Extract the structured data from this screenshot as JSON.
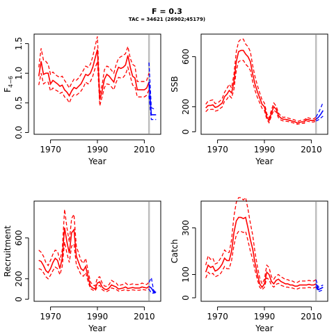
{
  "figure": {
    "title": "F = 0.3",
    "subtitle": "TAC = 34621 (26902;45179)"
  },
  "chart_data": [
    {
      "id": "fbar",
      "type": "line",
      "xlabel": "Year",
      "ylabel": "F",
      "ylabel_sub": "4−6",
      "xlim": [
        1963,
        2017
      ],
      "ylim": [
        -0.03,
        1.66
      ],
      "xticks": [
        1970,
        1990,
        2010
      ],
      "yticks": [
        0.0,
        0.5,
        1.0,
        1.5
      ],
      "ytick_labels": [
        "0.0",
        "0.5",
        "1.0",
        "1.5"
      ],
      "vline_x": 2012,
      "series": [
        {
          "role": "historic",
          "color": "#ff0000",
          "x": [
            1965,
            1966,
            1967,
            1968,
            1969,
            1970,
            1971,
            1972,
            1973,
            1974,
            1975,
            1976,
            1977,
            1978,
            1979,
            1980,
            1981,
            1982,
            1983,
            1984,
            1985,
            1986,
            1987,
            1988,
            1989,
            1990,
            1991,
            1992,
            1993,
            1994,
            1995,
            1996,
            1997,
            1998,
            1999,
            2000,
            2001,
            2002,
            2003,
            2004,
            2005,
            2006,
            2007,
            2008,
            2009,
            2010,
            2011,
            2012
          ],
          "mid": [
            0.95,
            1.2,
            0.98,
            1.0,
            1.0,
            0.82,
            0.88,
            0.85,
            0.82,
            0.78,
            0.8,
            0.72,
            0.68,
            0.62,
            0.7,
            0.76,
            0.74,
            0.78,
            0.82,
            0.9,
            0.98,
            0.96,
            1.0,
            1.1,
            1.25,
            1.4,
            0.55,
            0.7,
            0.9,
            0.98,
            0.95,
            0.9,
            0.85,
            1.0,
            1.1,
            1.08,
            1.1,
            1.14,
            1.3,
            1.1,
            0.95,
            0.92,
            0.72,
            0.72,
            0.72,
            0.72,
            0.75,
            0.85
          ],
          "upper": [
            1.1,
            1.42,
            1.22,
            1.2,
            1.15,
            0.98,
            1.02,
            0.98,
            0.95,
            0.93,
            0.95,
            0.88,
            0.82,
            0.75,
            0.83,
            0.9,
            0.88,
            0.92,
            0.98,
            1.05,
            1.12,
            1.1,
            1.15,
            1.28,
            1.45,
            1.62,
            0.64,
            0.8,
            1.06,
            1.12,
            1.1,
            1.05,
            1.0,
            1.15,
            1.25,
            1.28,
            1.3,
            1.33,
            1.45,
            1.25,
            1.15,
            1.12,
            0.86,
            0.86,
            0.86,
            0.86,
            0.88,
            1.0
          ],
          "lower": [
            0.8,
            1.0,
            0.82,
            0.85,
            0.85,
            0.7,
            0.75,
            0.72,
            0.7,
            0.66,
            0.68,
            0.6,
            0.57,
            0.5,
            0.59,
            0.64,
            0.63,
            0.66,
            0.7,
            0.76,
            0.85,
            0.82,
            0.86,
            0.95,
            1.08,
            1.2,
            0.45,
            0.6,
            0.76,
            0.82,
            0.81,
            0.77,
            0.72,
            0.85,
            0.93,
            0.92,
            0.93,
            0.98,
            1.1,
            0.95,
            0.8,
            0.78,
            0.6,
            0.6,
            0.6,
            0.6,
            0.63,
            0.72
          ]
        },
        {
          "role": "projection",
          "color": "#0000ff",
          "x": [
            2012,
            2013,
            2014,
            2015
          ],
          "mid": [
            0.85,
            0.3,
            0.3,
            0.3
          ],
          "upper": [
            1.18,
            0.42,
            0.4,
            0.4
          ],
          "lower": [
            0.62,
            0.22,
            0.22,
            0.22
          ]
        }
      ]
    },
    {
      "id": "ssb",
      "type": "line",
      "xlabel": "Year",
      "ylabel": "SSB",
      "xlim": [
        1963,
        2017
      ],
      "ylim": [
        -20,
        780
      ],
      "xticks": [
        1970,
        1990,
        2010
      ],
      "yticks": [
        0,
        200,
        600
      ],
      "ytick_labels": [
        "0",
        "200",
        "600"
      ],
      "vline_x": 2012,
      "series": [
        {
          "role": "historic",
          "color": "#ff0000",
          "x": [
            1965,
            1966,
            1967,
            1968,
            1969,
            1970,
            1971,
            1972,
            1973,
            1974,
            1975,
            1976,
            1977,
            1978,
            1979,
            1980,
            1981,
            1982,
            1983,
            1984,
            1985,
            1986,
            1987,
            1988,
            1989,
            1990,
            1991,
            1992,
            1993,
            1994,
            1995,
            1996,
            1997,
            1998,
            1999,
            2000,
            2001,
            2002,
            2003,
            2004,
            2005,
            2006,
            2007,
            2008,
            2009,
            2010,
            2011,
            2012
          ],
          "mid": [
            190,
            210,
            210,
            215,
            195,
            200,
            215,
            230,
            280,
            300,
            330,
            310,
            400,
            560,
            640,
            650,
            650,
            620,
            600,
            560,
            460,
            380,
            320,
            270,
            220,
            200,
            120,
            90,
            150,
            200,
            180,
            130,
            110,
            100,
            100,
            95,
            90,
            85,
            80,
            70,
            75,
            80,
            80,
            100,
            95,
            90,
            90,
            100
          ],
          "upper": [
            220,
            245,
            250,
            255,
            225,
            230,
            245,
            265,
            315,
            345,
            380,
            350,
            460,
            640,
            720,
            740,
            740,
            700,
            680,
            640,
            530,
            440,
            370,
            310,
            255,
            230,
            145,
            110,
            175,
            230,
            205,
            150,
            128,
            115,
            118,
            110,
            105,
            100,
            94,
            82,
            88,
            94,
            94,
            114,
            110,
            104,
            104,
            116
          ],
          "lower": [
            160,
            180,
            178,
            180,
            165,
            170,
            185,
            198,
            245,
            260,
            290,
            270,
            340,
            490,
            560,
            570,
            570,
            540,
            520,
            490,
            400,
            330,
            275,
            230,
            188,
            170,
            100,
            72,
            128,
            172,
            158,
            112,
            94,
            86,
            85,
            82,
            78,
            72,
            68,
            60,
            64,
            68,
            68,
            86,
            82,
            78,
            78,
            86
          ]
        },
        {
          "role": "projection",
          "color": "#0000ff",
          "x": [
            2012,
            2013,
            2014,
            2015
          ],
          "mid": [
            100,
            115,
            140,
            170
          ],
          "upper": [
            118,
            150,
            190,
            235
          ],
          "lower": [
            86,
            95,
            110,
            125
          ]
        }
      ]
    },
    {
      "id": "recruitment",
      "type": "line",
      "xlabel": "Year",
      "ylabel": "Recruitment",
      "xlim": [
        1963,
        2017
      ],
      "ylim": [
        -20,
        960
      ],
      "xticks": [
        1970,
        1990,
        2010
      ],
      "yticks": [
        0,
        200,
        600
      ],
      "ytick_labels": [
        "0",
        "200",
        "600"
      ],
      "vline_x": 2012,
      "series": [
        {
          "role": "historic",
          "color": "#ff0000",
          "x": [
            1965,
            1966,
            1967,
            1968,
            1969,
            1970,
            1971,
            1972,
            1973,
            1974,
            1975,
            1976,
            1977,
            1978,
            1979,
            1980,
            1981,
            1982,
            1983,
            1984,
            1985,
            1986,
            1987,
            1988,
            1989,
            1990,
            1991,
            1992,
            1993,
            1994,
            1995,
            1996,
            1997,
            1998,
            1999,
            2000,
            2001,
            2002,
            2003,
            2004,
            2005,
            2006,
            2007,
            2008,
            2009,
            2010,
            2011,
            2012
          ],
          "mid": [
            380,
            370,
            330,
            280,
            260,
            300,
            360,
            400,
            380,
            300,
            400,
            700,
            560,
            450,
            650,
            680,
            420,
            360,
            300,
            280,
            320,
            220,
            130,
            110,
            100,
            160,
            170,
            120,
            100,
            95,
            110,
            140,
            130,
            120,
            100,
            105,
            110,
            120,
            105,
            110,
            115,
            110,
            110,
            110,
            120,
            115,
            110,
            125
          ],
          "upper": [
            480,
            460,
            420,
            360,
            330,
            380,
            440,
            480,
            470,
            380,
            480,
            880,
            700,
            560,
            790,
            830,
            520,
            450,
            380,
            350,
            400,
            280,
            170,
            140,
            130,
            210,
            220,
            160,
            130,
            125,
            145,
            185,
            170,
            160,
            130,
            140,
            145,
            160,
            140,
            145,
            150,
            145,
            145,
            145,
            158,
            150,
            145,
            165
          ],
          "lower": [
            300,
            290,
            260,
            220,
            200,
            235,
            280,
            315,
            300,
            240,
            320,
            560,
            450,
            360,
            520,
            540,
            340,
            290,
            240,
            225,
            260,
            175,
            105,
            90,
            80,
            125,
            135,
            95,
            80,
            76,
            88,
            110,
            104,
            96,
            80,
            84,
            88,
            96,
            84,
            88,
            92,
            88,
            88,
            88,
            96,
            92,
            88,
            100
          ]
        },
        {
          "role": "projection",
          "color": "#0000ff",
          "x": [
            2012,
            2013,
            2014,
            2015
          ],
          "mid": [
            125,
            110,
            70,
            70
          ],
          "upper": [
            165,
            210,
            80,
            80
          ],
          "lower": [
            100,
            60,
            60,
            65
          ]
        }
      ]
    },
    {
      "id": "catch",
      "type": "line",
      "xlabel": "Year",
      "ylabel": "Catch",
      "xlim": [
        1963,
        2017
      ],
      "ylim": [
        -15,
        415
      ],
      "xticks": [
        1970,
        1990,
        2010
      ],
      "yticks": [
        0,
        100,
        300
      ],
      "ytick_labels": [
        "0",
        "100",
        "300"
      ],
      "vline_x": 2012,
      "series": [
        {
          "role": "historic",
          "color": "#ff0000",
          "x": [
            1965,
            1966,
            1967,
            1968,
            1969,
            1970,
            1971,
            1972,
            1973,
            1974,
            1975,
            1976,
            1977,
            1978,
            1979,
            1980,
            1981,
            1982,
            1983,
            1984,
            1985,
            1986,
            1987,
            1988,
            1989,
            1990,
            1991,
            1992,
            1993,
            1994,
            1995,
            1996,
            1997,
            1998,
            1999,
            2000,
            2001,
            2002,
            2003,
            2004,
            2005,
            2006,
            2007,
            2008,
            2009,
            2010,
            2011,
            2012
          ],
          "mid": [
            110,
            140,
            130,
            135,
            115,
            120,
            130,
            145,
            170,
            160,
            160,
            200,
            280,
            330,
            345,
            345,
            340,
            345,
            300,
            250,
            210,
            150,
            100,
            60,
            45,
            60,
            110,
            100,
            70,
            60,
            75,
            80,
            70,
            65,
            60,
            60,
            55,
            55,
            50,
            50,
            55,
            55,
            55,
            55,
            58,
            55,
            55,
            60
          ],
          "upper": [
            140,
            180,
            165,
            170,
            145,
            150,
            165,
            180,
            205,
            195,
            195,
            250,
            350,
            410,
            430,
            430,
            420,
            430,
            380,
            320,
            270,
            195,
            135,
            85,
            60,
            80,
            140,
            130,
            90,
            80,
            95,
            100,
            90,
            85,
            78,
            78,
            72,
            72,
            66,
            66,
            72,
            72,
            72,
            72,
            75,
            72,
            72,
            78
          ],
          "lower": [
            85,
            110,
            100,
            105,
            90,
            95,
            100,
            115,
            135,
            125,
            125,
            160,
            225,
            270,
            285,
            285,
            280,
            285,
            245,
            200,
            165,
            118,
            78,
            45,
            35,
            45,
            85,
            78,
            54,
            46,
            58,
            62,
            54,
            50,
            46,
            46,
            42,
            42,
            38,
            38,
            42,
            42,
            42,
            42,
            45,
            42,
            42,
            47
          ]
        },
        {
          "role": "projection",
          "color": "#0000ff",
          "x": [
            2012,
            2013,
            2014,
            2015
          ],
          "mid": [
            60,
            35,
            40,
            45
          ],
          "upper": [
            78,
            45,
            50,
            55
          ],
          "lower": [
            47,
            27,
            30,
            35
          ]
        }
      ]
    }
  ]
}
